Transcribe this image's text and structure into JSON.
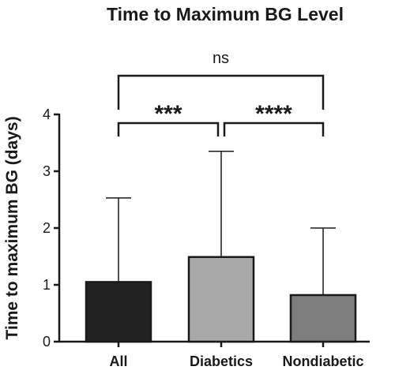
{
  "chart_data": {
    "type": "bar",
    "title": "Time to Maximum BG Level",
    "xlabel": "",
    "ylabel": "Time to maximum BG (days)",
    "ylim": [
      0,
      4
    ],
    "yticks": [
      "0",
      "1",
      "2",
      "3",
      "4"
    ],
    "categories": [
      "All",
      "Diabetics",
      "Nondiabetic"
    ],
    "values": [
      1.05,
      1.49,
      0.82
    ],
    "error_upper": [
      2.53,
      3.35,
      2.0
    ],
    "bar_colors": [
      "#222222",
      "#a9a9a9",
      "#7d7d7d"
    ],
    "grid": false,
    "annotations": [
      {
        "label": "***",
        "from": "All",
        "to": "Diabetics"
      },
      {
        "label": "****",
        "from": "Diabetics",
        "to": "Nondiabetic"
      },
      {
        "label": "ns",
        "from": "All",
        "to": "Nondiabetic"
      }
    ]
  }
}
